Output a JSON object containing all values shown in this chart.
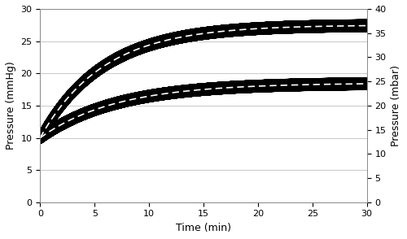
{
  "xlabel": "Time (min)",
  "ylabel_left": "Pressure (mmHg)",
  "ylabel_right": "Pressure (mbar)",
  "xlim": [
    0,
    30
  ],
  "ylim_left": [
    0,
    30
  ],
  "ylim_right": [
    0,
    40
  ],
  "xticks": [
    0,
    5,
    10,
    15,
    20,
    25,
    30
  ],
  "yticks_left": [
    0,
    5,
    10,
    15,
    20,
    25,
    30
  ],
  "yticks_right": [
    0,
    5,
    10,
    15,
    20,
    25,
    30,
    35,
    40
  ],
  "background_color": "#ffffff",
  "plot_bg_color": "#ffffff",
  "grid_color": "#cccccc",
  "P0": 10.0,
  "Pss_1": 18.5,
  "Pss_2": 27.5,
  "tau_1": 7.0,
  "tau_2": 5.8,
  "t_end": 30,
  "n_points": 50000,
  "band_linewidth": 4.5,
  "dashed_linewidth": 1.2,
  "oscillation_amplitude": 0.6,
  "oscillation_freq_per_min": 80.0,
  "figsize": [
    5.0,
    2.94
  ],
  "dpi": 100
}
